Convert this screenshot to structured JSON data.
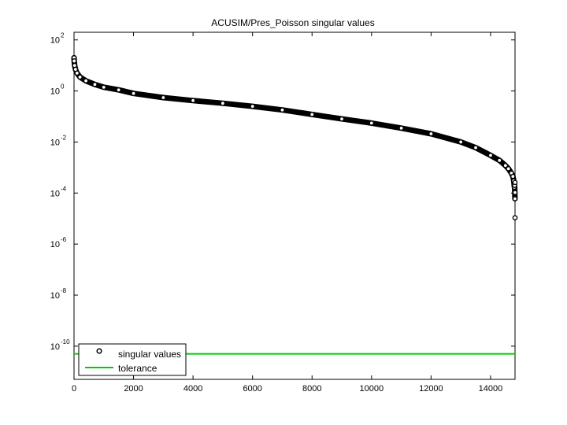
{
  "chart_data": {
    "type": "scatter",
    "title": "ACUSIM/Pres_Poisson singular values",
    "xlabel": "",
    "ylabel": "",
    "xlim": [
      0,
      14822
    ],
    "ylim_exponent": [
      -11.3,
      2.3
    ],
    "y_scale": "log",
    "grid": false,
    "legend_position": "bottom-left",
    "x_ticks": [
      "0",
      "2000",
      "4000",
      "6000",
      "8000",
      "10000",
      "12000",
      "14000"
    ],
    "x_tick_values": [
      0,
      2000,
      4000,
      6000,
      8000,
      10000,
      12000,
      14000
    ],
    "y_tick_base": "10",
    "y_tick_exponents": [
      "2",
      "0",
      "-2",
      "-4",
      "-6",
      "-8",
      "-10"
    ],
    "series": [
      {
        "name": "singular values",
        "marker": "circle-open",
        "color": "#000000",
        "points": [
          [
            1,
            20
          ],
          [
            5,
            15
          ],
          [
            20,
            10
          ],
          [
            50,
            7
          ],
          [
            100,
            5
          ],
          [
            200,
            3.5
          ],
          [
            400,
            2.5
          ],
          [
            700,
            1.8
          ],
          [
            1000,
            1.4
          ],
          [
            1500,
            1.1
          ],
          [
            2000,
            0.8
          ],
          [
            3000,
            0.55
          ],
          [
            4000,
            0.42
          ],
          [
            5000,
            0.33
          ],
          [
            6000,
            0.25
          ],
          [
            7000,
            0.18
          ],
          [
            8000,
            0.12
          ],
          [
            9000,
            0.08
          ],
          [
            10000,
            0.055
          ],
          [
            11000,
            0.035
          ],
          [
            12000,
            0.021
          ],
          [
            13000,
            0.01
          ],
          [
            13500,
            0.006
          ],
          [
            14000,
            0.003
          ],
          [
            14300,
            0.0019
          ],
          [
            14500,
            0.0012
          ],
          [
            14600,
            0.0009
          ],
          [
            14700,
            0.0006
          ],
          [
            14750,
            0.00045
          ],
          [
            14780,
            0.0003
          ],
          [
            14800,
            0.00017
          ],
          [
            14810,
            0.0002
          ],
          [
            14820,
            6e-05
          ]
        ],
        "outliers": [
          [
            14822,
            0.00026
          ],
          [
            14822,
            0.000105
          ],
          [
            14822,
            1.08e-05
          ]
        ]
      },
      {
        "name": "tolerance",
        "style": "line",
        "color": "#00cc00",
        "y": 5e-11
      }
    ]
  }
}
